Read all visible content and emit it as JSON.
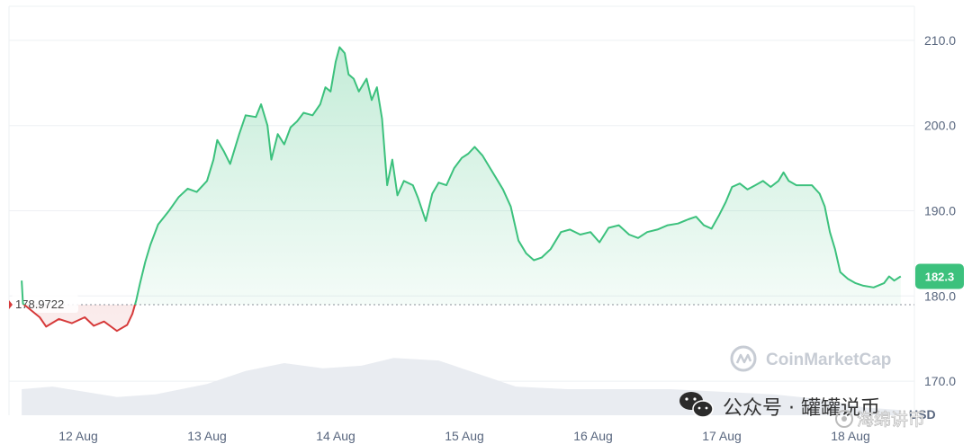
{
  "chart_data": {
    "type": "line",
    "title": "",
    "xlabel": "",
    "ylabel": "",
    "currency_label": "USD",
    "ylim": [
      166,
      214
    ],
    "yticks": [
      170,
      180,
      190,
      200,
      210
    ],
    "ytick_labels": [
      "170.0",
      "180.0",
      "190.0",
      "200.0",
      "210.0"
    ],
    "xticks": [
      {
        "label": "12 Aug",
        "day": 0.0
      },
      {
        "label": "13 Aug",
        "day": 1.0
      },
      {
        "label": "14 Aug",
        "day": 2.0
      },
      {
        "label": "15 Aug",
        "day": 3.0
      },
      {
        "label": "16 Aug",
        "day": 4.0
      },
      {
        "label": "17 Aug",
        "day": 5.0
      },
      {
        "label": "18 Aug",
        "day": 6.0
      }
    ],
    "baseline": {
      "value": 178.9722,
      "label": "178.9722"
    },
    "current_price": {
      "value": 182.3,
      "label": "182.3"
    },
    "series": [
      {
        "points": [
          [
            -0.44,
            181.8
          ],
          [
            -0.43,
            179.1
          ],
          [
            -0.3,
            177.5
          ],
          [
            -0.25,
            176.4
          ],
          [
            -0.15,
            177.3
          ],
          [
            -0.05,
            176.8
          ],
          [
            0.05,
            177.5
          ],
          [
            0.12,
            176.5
          ],
          [
            0.2,
            177.0
          ],
          [
            0.3,
            175.9
          ],
          [
            0.38,
            176.6
          ],
          [
            0.42,
            177.9
          ],
          [
            0.45,
            179.5
          ],
          [
            0.48,
            181.5
          ],
          [
            0.52,
            184.0
          ],
          [
            0.56,
            186.0
          ],
          [
            0.62,
            188.4
          ],
          [
            0.7,
            189.9
          ],
          [
            0.78,
            191.6
          ],
          [
            0.85,
            192.6
          ],
          [
            0.92,
            192.2
          ],
          [
            1.0,
            193.5
          ],
          [
            1.05,
            196.0
          ],
          [
            1.08,
            198.3
          ],
          [
            1.13,
            197.0
          ],
          [
            1.18,
            195.5
          ],
          [
            1.25,
            199.0
          ],
          [
            1.3,
            201.2
          ],
          [
            1.38,
            201.0
          ],
          [
            1.42,
            202.5
          ],
          [
            1.47,
            200.0
          ],
          [
            1.5,
            196.0
          ],
          [
            1.55,
            199.0
          ],
          [
            1.6,
            197.8
          ],
          [
            1.65,
            199.8
          ],
          [
            1.7,
            200.5
          ],
          [
            1.75,
            201.5
          ],
          [
            1.82,
            201.2
          ],
          [
            1.88,
            202.5
          ],
          [
            1.92,
            204.5
          ],
          [
            1.96,
            204.0
          ],
          [
            2.0,
            207.5
          ],
          [
            2.03,
            209.2
          ],
          [
            2.07,
            208.5
          ],
          [
            2.1,
            206.0
          ],
          [
            2.14,
            205.5
          ],
          [
            2.18,
            204.0
          ],
          [
            2.24,
            205.5
          ],
          [
            2.28,
            203.0
          ],
          [
            2.32,
            204.5
          ],
          [
            2.36,
            200.8
          ],
          [
            2.4,
            193.0
          ],
          [
            2.44,
            196.0
          ],
          [
            2.48,
            191.8
          ],
          [
            2.53,
            193.5
          ],
          [
            2.6,
            193.0
          ],
          [
            2.64,
            191.5
          ],
          [
            2.7,
            188.8
          ],
          [
            2.75,
            192.0
          ],
          [
            2.8,
            193.3
          ],
          [
            2.86,
            193.0
          ],
          [
            2.92,
            195.0
          ],
          [
            2.98,
            196.2
          ],
          [
            3.03,
            196.7
          ],
          [
            3.08,
            197.5
          ],
          [
            3.14,
            196.5
          ],
          [
            3.2,
            195.0
          ],
          [
            3.26,
            193.5
          ],
          [
            3.3,
            192.5
          ],
          [
            3.36,
            190.5
          ],
          [
            3.42,
            186.5
          ],
          [
            3.48,
            185.0
          ],
          [
            3.54,
            184.2
          ],
          [
            3.6,
            184.5
          ],
          [
            3.67,
            185.5
          ],
          [
            3.75,
            187.5
          ],
          [
            3.82,
            187.8
          ],
          [
            3.9,
            187.2
          ],
          [
            3.98,
            187.5
          ],
          [
            4.05,
            186.3
          ],
          [
            4.12,
            188.0
          ],
          [
            4.2,
            188.3
          ],
          [
            4.28,
            187.2
          ],
          [
            4.35,
            186.8
          ],
          [
            4.42,
            187.5
          ],
          [
            4.5,
            187.8
          ],
          [
            4.58,
            188.3
          ],
          [
            4.66,
            188.5
          ],
          [
            4.74,
            189.0
          ],
          [
            4.8,
            189.3
          ],
          [
            4.86,
            188.3
          ],
          [
            4.92,
            187.9
          ],
          [
            4.98,
            189.5
          ],
          [
            5.03,
            191.0
          ],
          [
            5.08,
            192.8
          ],
          [
            5.14,
            193.2
          ],
          [
            5.2,
            192.5
          ],
          [
            5.26,
            193.0
          ],
          [
            5.32,
            193.5
          ],
          [
            5.38,
            192.8
          ],
          [
            5.44,
            193.5
          ],
          [
            5.48,
            194.5
          ],
          [
            5.52,
            193.5
          ],
          [
            5.58,
            193.0
          ],
          [
            5.64,
            193.0
          ],
          [
            5.7,
            193.0
          ],
          [
            5.76,
            192.0
          ],
          [
            5.8,
            190.5
          ],
          [
            5.84,
            187.5
          ],
          [
            5.88,
            185.5
          ],
          [
            5.92,
            182.8
          ],
          [
            5.98,
            182.0
          ],
          [
            6.04,
            181.5
          ],
          [
            6.1,
            181.2
          ],
          [
            6.18,
            181.0
          ],
          [
            6.26,
            181.5
          ],
          [
            6.3,
            182.3
          ],
          [
            6.34,
            181.8
          ],
          [
            6.39,
            182.3
          ]
        ]
      }
    ],
    "volume": [
      [
        -0.44,
        0.5
      ],
      [
        -0.2,
        0.55
      ],
      [
        0.0,
        0.47
      ],
      [
        0.3,
        0.35
      ],
      [
        0.6,
        0.4
      ],
      [
        1.0,
        0.6
      ],
      [
        1.3,
        0.85
      ],
      [
        1.6,
        1.0
      ],
      [
        1.9,
        0.9
      ],
      [
        2.2,
        0.95
      ],
      [
        2.45,
        1.1
      ],
      [
        2.8,
        1.05
      ],
      [
        3.1,
        0.8
      ],
      [
        3.4,
        0.55
      ],
      [
        3.8,
        0.5
      ],
      [
        4.2,
        0.5
      ],
      [
        4.6,
        0.5
      ],
      [
        5.0,
        0.45
      ],
      [
        5.4,
        0.4
      ],
      [
        5.8,
        0.3
      ],
      [
        6.1,
        0.15
      ],
      [
        6.39,
        0.1
      ]
    ],
    "colors": {
      "up_line": "#3cc17d",
      "down_line": "#d63a3a",
      "up_fill": "#3cc17d",
      "down_fill": "#e08a8a",
      "baseline": "#8a8f99",
      "volume": "#e9ecf1",
      "price_tag": "#3cc17d",
      "grid": "#eef0f3"
    }
  },
  "watermarks": {
    "brand": "CoinMarketCap",
    "wechat_text": "公众号 · 罐罐说币",
    "small_text": "海绵讲币"
  }
}
